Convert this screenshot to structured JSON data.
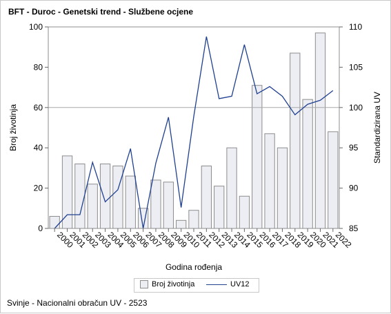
{
  "chart_data": {
    "type": "bar",
    "title": "BFT - Duroc - Genetski trend - Službene ocjene",
    "xlabel": "Godina rođenja",
    "ylabel": "Broj životinja",
    "y2label": "Standardizirana UV",
    "categories": [
      "2000",
      "2001",
      "2002",
      "2003",
      "2004",
      "2005",
      "2006",
      "2007",
      "2008",
      "2009",
      "2010",
      "2011",
      "2012",
      "2013",
      "2014",
      "2015",
      "2016",
      "2017",
      "2018",
      "2019",
      "2020",
      "2021",
      "2022"
    ],
    "ylim": [
      0,
      100
    ],
    "y2lim": [
      85,
      110
    ],
    "yticks": [
      0,
      20,
      40,
      60,
      80,
      100
    ],
    "y2ticks": [
      85,
      90,
      95,
      100,
      105,
      110
    ],
    "reference_line_y": 60,
    "series": [
      {
        "name": "Broj životinja",
        "type": "bar",
        "axis": "left",
        "color": "#eceef4",
        "edge": "#8c8c8c",
        "values": [
          6,
          36,
          32,
          22,
          32,
          31,
          26,
          10,
          24,
          23,
          4,
          9,
          31,
          21,
          40,
          16,
          71,
          47,
          40,
          87,
          64,
          97,
          48
        ]
      },
      {
        "name": "UV12",
        "type": "line",
        "axis": "right",
        "color": "#1f3f8f",
        "values": [
          85.0,
          86.7,
          86.7,
          93.2,
          88.3,
          89.8,
          94.9,
          85.0,
          93.1,
          98.8,
          87.6,
          98.9,
          108.8,
          101.1,
          101.4,
          107.8,
          101.7,
          102.6,
          101.4,
          99.1,
          100.4,
          100.9,
          102.1
        ]
      }
    ],
    "legend_position": "bottom-center",
    "grid": false
  },
  "legend": {
    "bar_label": "Broj životinja",
    "line_label": "UV12"
  },
  "footnote": "Svinje - Nacionalni obračun UV - 2523"
}
